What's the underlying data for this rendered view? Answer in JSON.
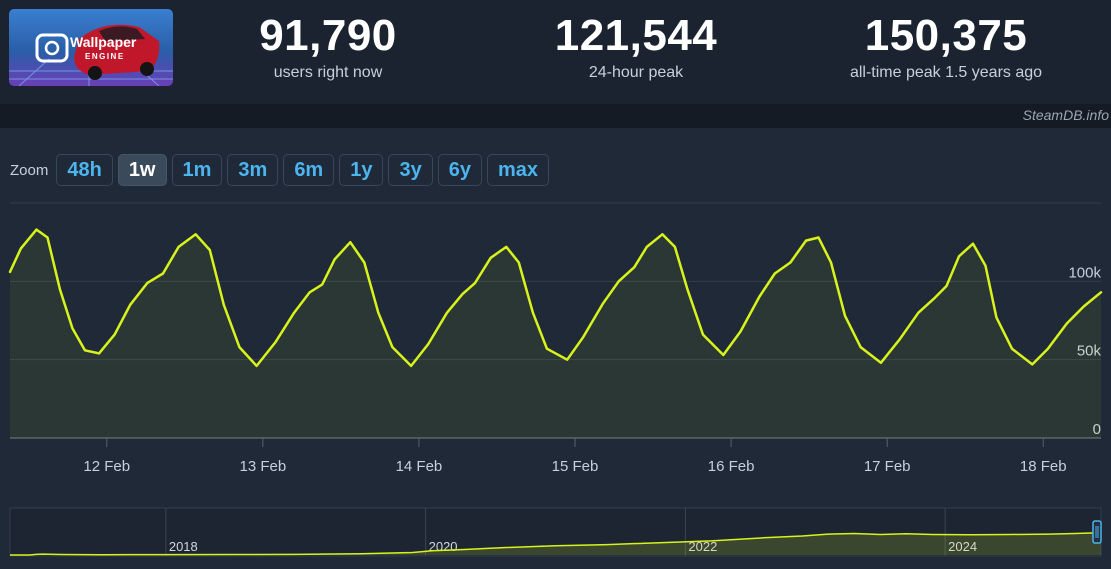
{
  "stats": [
    {
      "value": "91,790",
      "label": "users right now"
    },
    {
      "value": "121,544",
      "label": "24-hour peak"
    },
    {
      "value": "150,375",
      "label": "all-time peak 1.5 years ago"
    }
  ],
  "logo": {
    "line1": "Wallpaper",
    "line2": "ENGINE"
  },
  "watermark": "SteamDB.info",
  "zoom": {
    "label": "Zoom",
    "options": [
      "48h",
      "1w",
      "1m",
      "3m",
      "6m",
      "1y",
      "3y",
      "6y",
      "max"
    ],
    "active": "1w"
  },
  "colors": {
    "line": "#d8f31c",
    "grid": "#323e4c",
    "tick": "#c7d0da"
  },
  "chart_data": {
    "type": "line",
    "title": "",
    "xlabel": "",
    "ylabel": "",
    "ylim": [
      0,
      150000
    ],
    "y_ticks": [
      {
        "value": 0,
        "label": "0"
      },
      {
        "value": 50000,
        "label": "50k"
      },
      {
        "value": 100000,
        "label": "100k"
      }
    ],
    "x_ticks": [
      {
        "day": 12,
        "label": "12 Feb"
      },
      {
        "day": 13,
        "label": "13 Feb"
      },
      {
        "day": 14,
        "label": "14 Feb"
      },
      {
        "day": 15,
        "label": "15 Feb"
      },
      {
        "day": 16,
        "label": "16 Feb"
      },
      {
        "day": 17,
        "label": "17 Feb"
      },
      {
        "day": 18,
        "label": "18 Feb"
      }
    ],
    "xlim_days": [
      11.38,
      18.37
    ],
    "series": [
      {
        "points": [
          [
            11.38,
            106000
          ],
          [
            11.45,
            121000
          ],
          [
            11.55,
            133000
          ],
          [
            11.62,
            128000
          ],
          [
            11.7,
            95000
          ],
          [
            11.78,
            70000
          ],
          [
            11.86,
            56000
          ],
          [
            11.95,
            54000
          ],
          [
            12.05,
            66000
          ],
          [
            12.15,
            85000
          ],
          [
            12.26,
            99000
          ],
          [
            12.36,
            105000
          ],
          [
            12.46,
            122000
          ],
          [
            12.57,
            130000
          ],
          [
            12.66,
            120000
          ],
          [
            12.75,
            85000
          ],
          [
            12.85,
            58000
          ],
          [
            12.96,
            46000
          ],
          [
            13.08,
            61000
          ],
          [
            13.2,
            80000
          ],
          [
            13.3,
            93000
          ],
          [
            13.38,
            98000
          ],
          [
            13.46,
            114000
          ],
          [
            13.56,
            125000
          ],
          [
            13.65,
            112000
          ],
          [
            13.74,
            80000
          ],
          [
            13.83,
            58000
          ],
          [
            13.95,
            46000
          ],
          [
            14.06,
            60000
          ],
          [
            14.18,
            80000
          ],
          [
            14.28,
            92000
          ],
          [
            14.36,
            99000
          ],
          [
            14.46,
            115000
          ],
          [
            14.56,
            122000
          ],
          [
            14.64,
            112000
          ],
          [
            14.73,
            80000
          ],
          [
            14.82,
            57000
          ],
          [
            14.95,
            50000
          ],
          [
            15.05,
            64000
          ],
          [
            15.18,
            86000
          ],
          [
            15.28,
            100000
          ],
          [
            15.38,
            109000
          ],
          [
            15.46,
            122000
          ],
          [
            15.56,
            130000
          ],
          [
            15.64,
            122000
          ],
          [
            15.72,
            95000
          ],
          [
            15.82,
            66000
          ],
          [
            15.95,
            53000
          ],
          [
            16.06,
            68000
          ],
          [
            16.18,
            90000
          ],
          [
            16.28,
            105000
          ],
          [
            16.38,
            112000
          ],
          [
            16.48,
            126000
          ],
          [
            16.56,
            128000
          ],
          [
            16.64,
            112000
          ],
          [
            16.73,
            78000
          ],
          [
            16.83,
            58000
          ],
          [
            16.96,
            48000
          ],
          [
            17.08,
            63000
          ],
          [
            17.2,
            80000
          ],
          [
            17.3,
            89000
          ],
          [
            17.38,
            97000
          ],
          [
            17.46,
            116000
          ],
          [
            17.55,
            124000
          ],
          [
            17.63,
            110000
          ],
          [
            17.7,
            77000
          ],
          [
            17.8,
            57000
          ],
          [
            17.93,
            47000
          ],
          [
            18.03,
            57000
          ],
          [
            18.15,
            73000
          ],
          [
            18.26,
            84000
          ],
          [
            18.37,
            93000
          ]
        ]
      }
    ],
    "navigator": {
      "x_ticks": [
        "2018",
        "2020",
        "2022",
        "2024"
      ],
      "ylim": [
        0,
        150000
      ],
      "points": [
        [
          2016.8,
          0
        ],
        [
          2016.95,
          0
        ],
        [
          2017.0,
          2000
        ],
        [
          2017.05,
          3000
        ],
        [
          2017.2,
          1500
        ],
        [
          2017.5,
          1000
        ],
        [
          2018.0,
          1200
        ],
        [
          2018.5,
          1500
        ],
        [
          2019.0,
          2000
        ],
        [
          2019.5,
          4000
        ],
        [
          2019.9,
          8000
        ],
        [
          2020.05,
          14000
        ],
        [
          2020.3,
          18000
        ],
        [
          2020.6,
          24000
        ],
        [
          2021.0,
          30000
        ],
        [
          2021.4,
          34000
        ],
        [
          2021.8,
          40000
        ],
        [
          2022.2,
          46000
        ],
        [
          2022.6,
          56000
        ],
        [
          2022.9,
          62000
        ],
        [
          2023.1,
          68000
        ],
        [
          2023.3,
          70000
        ],
        [
          2023.5,
          67000
        ],
        [
          2023.7,
          69000
        ],
        [
          2023.9,
          67000
        ],
        [
          2024.2,
          66000
        ],
        [
          2024.5,
          67000
        ],
        [
          2024.8,
          68000
        ],
        [
          2025.0,
          70000
        ],
        [
          2025.15,
          72000
        ],
        [
          2025.2,
          64000
        ]
      ]
    }
  }
}
